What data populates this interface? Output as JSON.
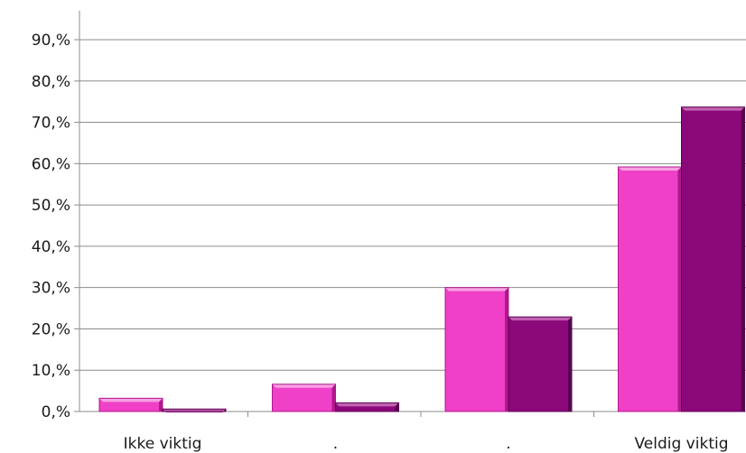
{
  "chart_data": {
    "type": "bar",
    "categories": [
      "Ikke viktig",
      ".",
      ".",
      "Veldig viktig"
    ],
    "series": [
      {
        "values": [
          3.2,
          6.6,
          30.0,
          59.2
        ],
        "color": "#f040c8",
        "top_color": "#f7a0e2",
        "side_color": "#b0188c"
      },
      {
        "values": [
          0.6,
          2.1,
          22.9,
          73.7
        ],
        "color": "#8b087a",
        "top_color": "#c060b0",
        "side_color": "#5a0050"
      }
    ],
    "y_ticks": [
      "0,%",
      "10,%",
      "20,%",
      "30,%",
      "40,%",
      "50,%",
      "60,%",
      "70,%",
      "80,%",
      "90,%"
    ],
    "ylim": [
      0,
      90
    ],
    "grid": true,
    "legend": "none",
    "title": "",
    "xlabel": "",
    "ylabel": ""
  }
}
